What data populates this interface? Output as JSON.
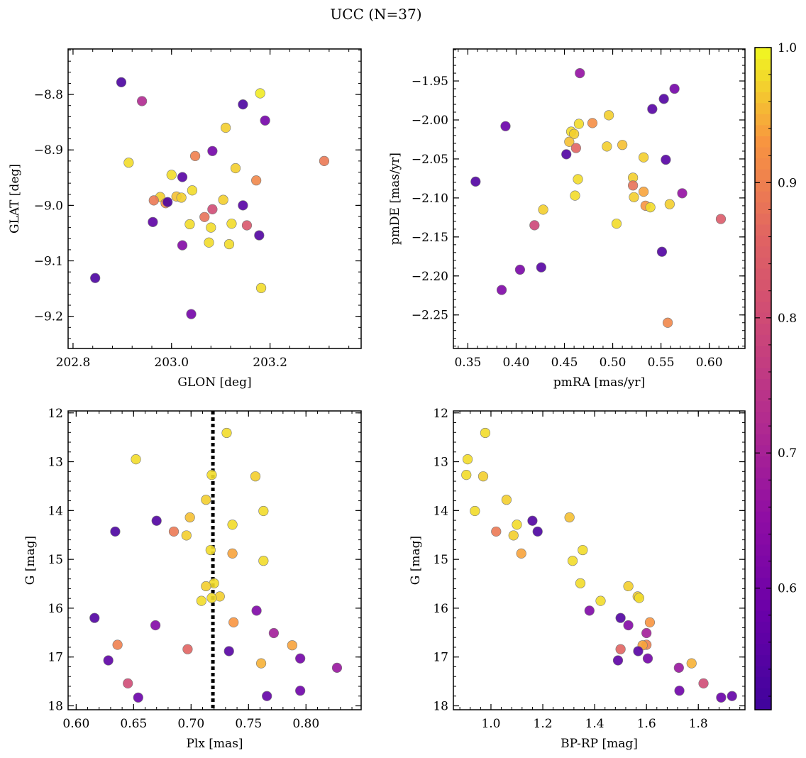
{
  "title": "UCC (N=37)",
  "colormap": "plasma",
  "marker_edge_color": "#777777",
  "colorbar": {
    "range": [
      0.51,
      1.0
    ],
    "ticks": [
      0.6,
      0.7,
      0.8,
      0.9,
      1.0
    ],
    "tick_labels": [
      "0.6",
      "0.7",
      "0.8",
      "0.9",
      "1.0"
    ]
  },
  "chart_data": [
    {
      "type": "scatter",
      "panel": "top-left",
      "xlabel": "GLON [deg]",
      "ylabel": "GLAT [deg]",
      "xlim": [
        202.79,
        203.385
      ],
      "ylim": [
        -9.258,
        -8.718
      ],
      "xticks": [
        202.8,
        203.0,
        203.2
      ],
      "xtick_labels": [
        "202.8",
        "203.0",
        "203.2"
      ],
      "yticks": [
        -8.8,
        -8.9,
        -9.0,
        -9.1,
        -9.2
      ],
      "ytick_labels": [
        "−8.8",
        "−8.9",
        "−9.0",
        "−9.1",
        "−9.2"
      ],
      "points": [
        {
          "x": 202.898,
          "y": -8.778,
          "c": 0.53
        },
        {
          "x": 202.94,
          "y": -8.812,
          "c": 0.72
        },
        {
          "x": 203.18,
          "y": -8.798,
          "c": 0.99
        },
        {
          "x": 203.145,
          "y": -8.818,
          "c": 0.53
        },
        {
          "x": 203.19,
          "y": -8.847,
          "c": 0.6
        },
        {
          "x": 203.11,
          "y": -8.86,
          "c": 0.97
        },
        {
          "x": 203.083,
          "y": -8.902,
          "c": 0.6
        },
        {
          "x": 203.048,
          "y": -8.911,
          "c": 0.9
        },
        {
          "x": 202.913,
          "y": -8.923,
          "c": 0.98
        },
        {
          "x": 203.31,
          "y": -8.92,
          "c": 0.89
        },
        {
          "x": 203.13,
          "y": -8.933,
          "c": 0.97
        },
        {
          "x": 203.0,
          "y": -8.945,
          "c": 0.98
        },
        {
          "x": 203.022,
          "y": -8.949,
          "c": 0.55
        },
        {
          "x": 203.172,
          "y": -8.955,
          "c": 0.91
        },
        {
          "x": 203.042,
          "y": -8.973,
          "c": 0.98
        },
        {
          "x": 202.977,
          "y": -8.985,
          "c": 0.97
        },
        {
          "x": 203.01,
          "y": -8.984,
          "c": 0.96
        },
        {
          "x": 203.02,
          "y": -8.986,
          "c": 0.97
        },
        {
          "x": 203.105,
          "y": -8.99,
          "c": 0.97
        },
        {
          "x": 202.964,
          "y": -8.991,
          "c": 0.89
        },
        {
          "x": 202.988,
          "y": -8.996,
          "c": 0.92
        },
        {
          "x": 202.992,
          "y": -8.994,
          "c": 0.53
        },
        {
          "x": 203.145,
          "y": -9.0,
          "c": 0.55
        },
        {
          "x": 203.083,
          "y": -9.007,
          "c": 0.8
        },
        {
          "x": 203.067,
          "y": -9.021,
          "c": 0.88
        },
        {
          "x": 202.962,
          "y": -9.03,
          "c": 0.56
        },
        {
          "x": 203.037,
          "y": -9.034,
          "c": 0.98
        },
        {
          "x": 203.122,
          "y": -9.033,
          "c": 0.98
        },
        {
          "x": 203.153,
          "y": -9.036,
          "c": 0.83
        },
        {
          "x": 203.08,
          "y": -9.04,
          "c": 0.98
        },
        {
          "x": 203.178,
          "y": -9.054,
          "c": 0.54
        },
        {
          "x": 203.076,
          "y": -9.067,
          "c": 0.98
        },
        {
          "x": 203.117,
          "y": -9.07,
          "c": 0.98
        },
        {
          "x": 203.022,
          "y": -9.072,
          "c": 0.63
        },
        {
          "x": 202.845,
          "y": -9.131,
          "c": 0.53
        },
        {
          "x": 203.182,
          "y": -9.149,
          "c": 0.98
        },
        {
          "x": 203.04,
          "y": -9.196,
          "c": 0.6
        }
      ]
    },
    {
      "type": "scatter",
      "panel": "top-right",
      "xlabel": "pmRA [mas/yr]",
      "ylabel": "pmDE [mas/yr]",
      "xlim": [
        0.335,
        0.637
      ],
      "ylim": [
        -2.293,
        -1.909
      ],
      "xticks": [
        0.35,
        0.4,
        0.45,
        0.5,
        0.55,
        0.6
      ],
      "xtick_labels": [
        "0.35",
        "0.40",
        "0.45",
        "0.50",
        "0.55",
        "0.60"
      ],
      "yticks": [
        -1.95,
        -2.0,
        -2.05,
        -2.1,
        -2.15,
        -2.2,
        -2.25
      ],
      "ytick_labels": [
        "−1.95",
        "−2.00",
        "−2.05",
        "−2.10",
        "−2.15",
        "−2.20",
        "−2.25"
      ],
      "points": [
        {
          "x": 0.466,
          "y": -1.94,
          "c": 0.66
        },
        {
          "x": 0.564,
          "y": -1.96,
          "c": 0.6
        },
        {
          "x": 0.553,
          "y": -1.973,
          "c": 0.54
        },
        {
          "x": 0.541,
          "y": -1.986,
          "c": 0.55
        },
        {
          "x": 0.496,
          "y": -1.994,
          "c": 0.97
        },
        {
          "x": 0.389,
          "y": -2.008,
          "c": 0.58
        },
        {
          "x": 0.465,
          "y": -2.005,
          "c": 0.98
        },
        {
          "x": 0.479,
          "y": -2.004,
          "c": 0.92
        },
        {
          "x": 0.457,
          "y": -2.015,
          "c": 0.98
        },
        {
          "x": 0.46,
          "y": -2.018,
          "c": 0.97
        },
        {
          "x": 0.455,
          "y": -2.028,
          "c": 0.96
        },
        {
          "x": 0.51,
          "y": -2.032,
          "c": 0.96
        },
        {
          "x": 0.494,
          "y": -2.034,
          "c": 0.97
        },
        {
          "x": 0.462,
          "y": -2.036,
          "c": 0.86
        },
        {
          "x": 0.452,
          "y": -2.044,
          "c": 0.54
        },
        {
          "x": 0.532,
          "y": -2.048,
          "c": 0.97
        },
        {
          "x": 0.555,
          "y": -2.051,
          "c": 0.55
        },
        {
          "x": 0.521,
          "y": -2.074,
          "c": 0.97
        },
        {
          "x": 0.464,
          "y": -2.076,
          "c": 0.98
        },
        {
          "x": 0.358,
          "y": -2.079,
          "c": 0.54
        },
        {
          "x": 0.521,
          "y": -2.084,
          "c": 0.88
        },
        {
          "x": 0.532,
          "y": -2.092,
          "c": 0.94
        },
        {
          "x": 0.572,
          "y": -2.094,
          "c": 0.66
        },
        {
          "x": 0.461,
          "y": -2.097,
          "c": 0.98
        },
        {
          "x": 0.522,
          "y": -2.099,
          "c": 0.97
        },
        {
          "x": 0.559,
          "y": -2.108,
          "c": 0.97
        },
        {
          "x": 0.534,
          "y": -2.11,
          "c": 0.93
        },
        {
          "x": 0.539,
          "y": -2.112,
          "c": 0.98
        },
        {
          "x": 0.428,
          "y": -2.115,
          "c": 0.97
        },
        {
          "x": 0.612,
          "y": -2.127,
          "c": 0.84
        },
        {
          "x": 0.504,
          "y": -2.133,
          "c": 0.98
        },
        {
          "x": 0.419,
          "y": -2.135,
          "c": 0.79
        },
        {
          "x": 0.551,
          "y": -2.169,
          "c": 0.54
        },
        {
          "x": 0.426,
          "y": -2.189,
          "c": 0.55
        },
        {
          "x": 0.404,
          "y": -2.192,
          "c": 0.61
        },
        {
          "x": 0.385,
          "y": -2.218,
          "c": 0.62
        },
        {
          "x": 0.557,
          "y": -2.26,
          "c": 0.91
        }
      ]
    },
    {
      "type": "scatter",
      "panel": "bottom-left",
      "xlabel": "Plx [mas]",
      "ylabel": "G [mag]",
      "xlim": [
        0.593,
        0.848
      ],
      "ylim": [
        18.08,
        11.96
      ],
      "y_inverted": true,
      "xticks": [
        0.6,
        0.65,
        0.7,
        0.75,
        0.8
      ],
      "xtick_labels": [
        "0.60",
        "0.65",
        "0.70",
        "0.75",
        "0.80"
      ],
      "yticks": [
        12,
        13,
        14,
        15,
        16,
        17,
        18
      ],
      "ytick_labels": [
        "12",
        "13",
        "14",
        "15",
        "16",
        "17",
        "18"
      ],
      "reference_line": {
        "x": 0.719,
        "style": "dotted",
        "color": "#000000"
      },
      "points": [
        {
          "x": 0.731,
          "y": 12.41,
          "c": 0.98
        },
        {
          "x": 0.652,
          "y": 12.95,
          "c": 0.98
        },
        {
          "x": 0.718,
          "y": 13.27,
          "c": 0.98
        },
        {
          "x": 0.756,
          "y": 13.3,
          "c": 0.97
        },
        {
          "x": 0.713,
          "y": 13.78,
          "c": 0.97
        },
        {
          "x": 0.763,
          "y": 14.01,
          "c": 0.98
        },
        {
          "x": 0.699,
          "y": 14.14,
          "c": 0.96
        },
        {
          "x": 0.67,
          "y": 14.21,
          "c": 0.54
        },
        {
          "x": 0.736,
          "y": 14.29,
          "c": 0.98
        },
        {
          "x": 0.634,
          "y": 14.43,
          "c": 0.53
        },
        {
          "x": 0.685,
          "y": 14.43,
          "c": 0.89
        },
        {
          "x": 0.696,
          "y": 14.51,
          "c": 0.97
        },
        {
          "x": 0.717,
          "y": 14.81,
          "c": 0.98
        },
        {
          "x": 0.736,
          "y": 14.88,
          "c": 0.94
        },
        {
          "x": 0.763,
          "y": 15.03,
          "c": 0.98
        },
        {
          "x": 0.72,
          "y": 15.49,
          "c": 0.98
        },
        {
          "x": 0.713,
          "y": 15.55,
          "c": 0.97
        },
        {
          "x": 0.725,
          "y": 15.76,
          "c": 0.97
        },
        {
          "x": 0.718,
          "y": 15.79,
          "c": 0.98
        },
        {
          "x": 0.709,
          "y": 15.85,
          "c": 0.98
        },
        {
          "x": 0.757,
          "y": 16.05,
          "c": 0.62
        },
        {
          "x": 0.616,
          "y": 16.2,
          "c": 0.54
        },
        {
          "x": 0.737,
          "y": 16.29,
          "c": 0.93
        },
        {
          "x": 0.669,
          "y": 16.35,
          "c": 0.63
        },
        {
          "x": 0.772,
          "y": 16.51,
          "c": 0.69
        },
        {
          "x": 0.636,
          "y": 16.75,
          "c": 0.9
        },
        {
          "x": 0.788,
          "y": 16.76,
          "c": 0.94
        },
        {
          "x": 0.697,
          "y": 16.84,
          "c": 0.86
        },
        {
          "x": 0.733,
          "y": 16.88,
          "c": 0.55
        },
        {
          "x": 0.795,
          "y": 17.03,
          "c": 0.6
        },
        {
          "x": 0.628,
          "y": 17.07,
          "c": 0.56
        },
        {
          "x": 0.761,
          "y": 17.13,
          "c": 0.95
        },
        {
          "x": 0.827,
          "y": 17.22,
          "c": 0.67
        },
        {
          "x": 0.645,
          "y": 17.54,
          "c": 0.8
        },
        {
          "x": 0.795,
          "y": 17.69,
          "c": 0.59
        },
        {
          "x": 0.766,
          "y": 17.8,
          "c": 0.57
        },
        {
          "x": 0.654,
          "y": 17.83,
          "c": 0.58
        }
      ]
    },
    {
      "type": "scatter",
      "panel": "bottom-right",
      "xlabel": "BP-RP [mag]",
      "ylabel": "G [mag]",
      "xlim": [
        0.855,
        1.98
      ],
      "ylim": [
        18.08,
        11.96
      ],
      "y_inverted": true,
      "xticks": [
        1.0,
        1.2,
        1.4,
        1.6,
        1.8
      ],
      "xtick_labels": [
        "1.0",
        "1.2",
        "1.4",
        "1.6",
        "1.8"
      ],
      "yticks": [
        12,
        13,
        14,
        15,
        16,
        17,
        18
      ],
      "ytick_labels": [
        "12",
        "13",
        "14",
        "15",
        "16",
        "17",
        "18"
      ],
      "points": [
        {
          "x": 0.978,
          "y": 12.41,
          "c": 0.98
        },
        {
          "x": 0.91,
          "y": 12.95,
          "c": 0.98
        },
        {
          "x": 0.905,
          "y": 13.27,
          "c": 0.98
        },
        {
          "x": 0.97,
          "y": 13.3,
          "c": 0.97
        },
        {
          "x": 1.06,
          "y": 13.78,
          "c": 0.97
        },
        {
          "x": 0.938,
          "y": 14.01,
          "c": 0.98
        },
        {
          "x": 1.303,
          "y": 14.14,
          "c": 0.96
        },
        {
          "x": 1.16,
          "y": 14.21,
          "c": 0.54
        },
        {
          "x": 1.1,
          "y": 14.29,
          "c": 0.98
        },
        {
          "x": 1.18,
          "y": 14.43,
          "c": 0.53
        },
        {
          "x": 1.02,
          "y": 14.43,
          "c": 0.89
        },
        {
          "x": 1.087,
          "y": 14.51,
          "c": 0.97
        },
        {
          "x": 1.354,
          "y": 14.81,
          "c": 0.98
        },
        {
          "x": 1.117,
          "y": 14.88,
          "c": 0.94
        },
        {
          "x": 1.315,
          "y": 15.03,
          "c": 0.98
        },
        {
          "x": 1.345,
          "y": 15.49,
          "c": 0.98
        },
        {
          "x": 1.53,
          "y": 15.55,
          "c": 0.97
        },
        {
          "x": 1.566,
          "y": 15.76,
          "c": 0.97
        },
        {
          "x": 1.572,
          "y": 15.79,
          "c": 0.98
        },
        {
          "x": 1.423,
          "y": 15.85,
          "c": 0.98
        },
        {
          "x": 1.38,
          "y": 16.05,
          "c": 0.62
        },
        {
          "x": 1.5,
          "y": 16.2,
          "c": 0.54
        },
        {
          "x": 1.613,
          "y": 16.29,
          "c": 0.93
        },
        {
          "x": 1.53,
          "y": 16.35,
          "c": 0.63
        },
        {
          "x": 1.6,
          "y": 16.51,
          "c": 0.69
        },
        {
          "x": 1.6,
          "y": 16.75,
          "c": 0.9
        },
        {
          "x": 1.585,
          "y": 16.76,
          "c": 0.94
        },
        {
          "x": 1.5,
          "y": 16.84,
          "c": 0.86
        },
        {
          "x": 1.568,
          "y": 16.88,
          "c": 0.55
        },
        {
          "x": 1.605,
          "y": 17.03,
          "c": 0.6
        },
        {
          "x": 1.49,
          "y": 17.07,
          "c": 0.56
        },
        {
          "x": 1.774,
          "y": 17.13,
          "c": 0.95
        },
        {
          "x": 1.725,
          "y": 17.22,
          "c": 0.67
        },
        {
          "x": 1.82,
          "y": 17.54,
          "c": 0.8
        },
        {
          "x": 1.727,
          "y": 17.69,
          "c": 0.59
        },
        {
          "x": 1.93,
          "y": 17.8,
          "c": 0.57
        },
        {
          "x": 1.888,
          "y": 17.83,
          "c": 0.58
        }
      ]
    }
  ]
}
